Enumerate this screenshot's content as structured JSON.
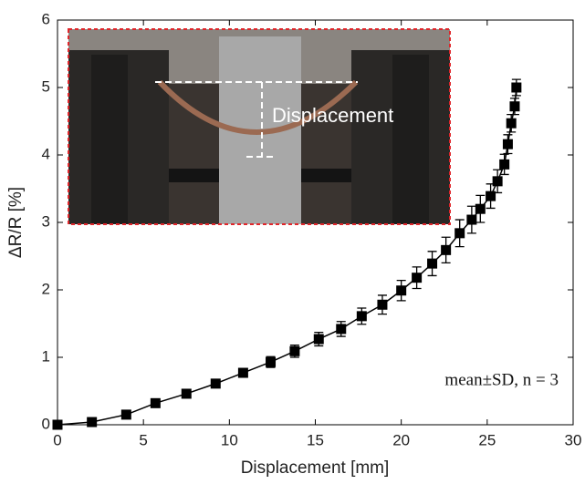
{
  "chart_data": {
    "type": "line",
    "x_label": "Displacement [mm]",
    "y_label": "ΔR/R [%]",
    "annotation": "mean±SD, n = 3",
    "inset_label": "Displacement",
    "xlim": [
      0,
      30
    ],
    "ylim": [
      0,
      6
    ],
    "xticks": [
      0,
      5,
      10,
      15,
      20,
      25,
      30
    ],
    "yticks": [
      0,
      1,
      2,
      3,
      4,
      5,
      6
    ],
    "x": [
      0,
      2.0,
      4.0,
      5.7,
      7.5,
      9.2,
      10.8,
      12.4,
      13.8,
      15.2,
      16.5,
      17.7,
      18.9,
      20.0,
      20.9,
      21.8,
      22.6,
      23.4,
      24.1,
      24.6,
      25.2,
      25.6,
      26.0,
      26.2,
      26.4,
      26.6,
      26.7
    ],
    "series": [
      {
        "color": "#000000",
        "values": [
          0,
          0.04,
          0.15,
          0.32,
          0.46,
          0.61,
          0.77,
          0.93,
          1.09,
          1.27,
          1.42,
          1.61,
          1.78,
          1.99,
          2.18,
          2.39,
          2.59,
          2.84,
          3.04,
          3.2,
          3.39,
          3.61,
          3.86,
          4.16,
          4.47,
          4.72,
          5.0
        ],
        "errors": [
          0.02,
          0.03,
          0.03,
          0.04,
          0.04,
          0.05,
          0.06,
          0.08,
          0.09,
          0.1,
          0.11,
          0.12,
          0.14,
          0.15,
          0.16,
          0.18,
          0.19,
          0.2,
          0.2,
          0.2,
          0.18,
          0.17,
          0.15,
          0.14,
          0.13,
          0.12,
          0.12
        ]
      }
    ]
  }
}
